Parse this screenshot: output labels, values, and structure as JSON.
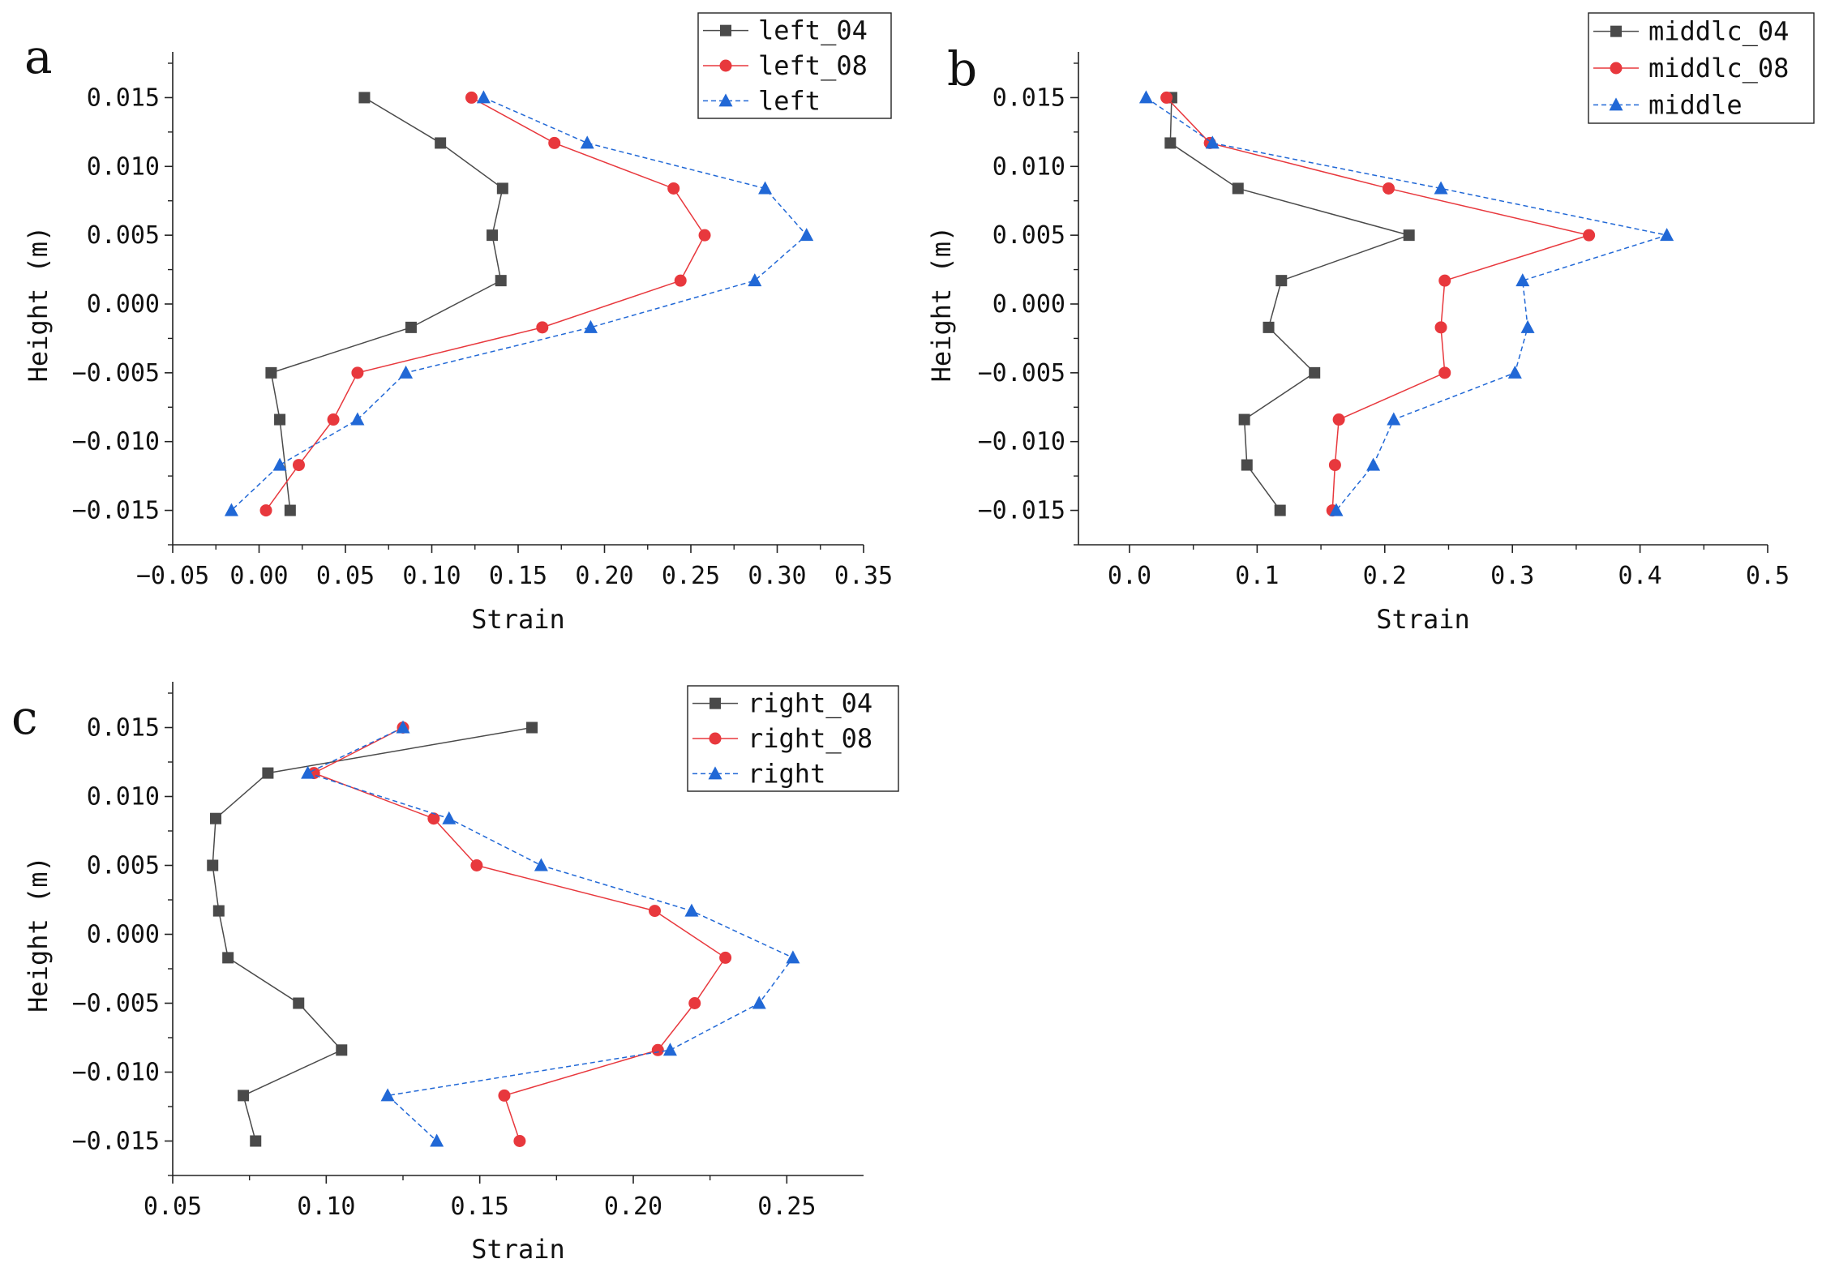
{
  "figure_title": "",
  "chart_data": [
    {
      "type": "line",
      "panel_label": "a",
      "title": "",
      "xlabel": "Strain",
      "ylabel": "Height (m)",
      "xlim": [
        -0.05,
        0.35
      ],
      "ylim": [
        -0.0175,
        0.0175
      ],
      "x_ticks": [
        -0.05,
        0.0,
        0.05,
        0.1,
        0.15,
        0.2,
        0.25,
        0.3,
        0.35
      ],
      "x_tick_labels": [
        "−0.05",
        "0.00",
        "0.05",
        "0.10",
        "0.15",
        "0.20",
        "0.25",
        "0.30",
        "0.35"
      ],
      "y_ticks": [
        0.015,
        0.01,
        0.005,
        0.0,
        -0.005,
        -0.01,
        -0.015
      ],
      "y_tick_labels": [
        "0.015",
        "0.010",
        "0.005",
        "0.000",
        "−0.005",
        "−0.010",
        "−0.015"
      ],
      "legend_position": "top-right",
      "series": [
        {
          "name": "left_04",
          "color": "#4a4a4a",
          "marker": "square",
          "line_style": "solid",
          "x": [
            0.061,
            0.105,
            0.141,
            0.135,
            0.14,
            0.088,
            0.007,
            0.012,
            0.018
          ],
          "y": [
            0.015,
            0.0117,
            0.0084,
            0.005,
            0.0017,
            -0.0017,
            -0.005,
            -0.0084,
            -0.015
          ]
        },
        {
          "name": "left_08",
          "color": "#e8383d",
          "marker": "circle",
          "line_style": "solid",
          "x": [
            0.123,
            0.171,
            0.24,
            0.258,
            0.244,
            0.164,
            0.057,
            0.043,
            0.023,
            0.004
          ],
          "y": [
            0.015,
            0.0117,
            0.0084,
            0.005,
            0.0017,
            -0.0017,
            -0.005,
            -0.0084,
            -0.0117,
            -0.015
          ]
        },
        {
          "name": "left",
          "color": "#2168d6",
          "marker": "triangle",
          "line_style": "dashed",
          "x": [
            0.13,
            0.19,
            0.293,
            0.317,
            0.287,
            0.192,
            0.085,
            0.057,
            0.012,
            -0.016
          ],
          "y": [
            0.015,
            0.0117,
            0.0084,
            0.005,
            0.0017,
            -0.0017,
            -0.005,
            -0.0084,
            -0.0117,
            -0.015
          ]
        }
      ]
    },
    {
      "type": "line",
      "panel_label": "b",
      "title": "",
      "xlabel": "Strain",
      "ylabel": "Height (m)",
      "xlim": [
        -0.04,
        0.5
      ],
      "ylim": [
        -0.0175,
        0.0175
      ],
      "x_ticks": [
        0.0,
        0.1,
        0.2,
        0.3,
        0.4,
        0.5
      ],
      "x_tick_labels": [
        "0.0",
        "0.1",
        "0.2",
        "0.3",
        "0.4",
        "0.5"
      ],
      "y_ticks": [
        0.015,
        0.01,
        0.005,
        0.0,
        -0.005,
        -0.01,
        -0.015
      ],
      "y_tick_labels": [
        "0.015",
        "0.010",
        "0.005",
        "0.000",
        "−0.005",
        "−0.010",
        "−0.015"
      ],
      "legend_position": "top-right",
      "series": [
        {
          "name": "middlc_04",
          "color": "#4a4a4a",
          "marker": "square",
          "line_style": "solid",
          "x": [
            0.033,
            0.032,
            0.085,
            0.219,
            0.119,
            0.109,
            0.145,
            0.09,
            0.092,
            0.118
          ],
          "y": [
            0.015,
            0.0117,
            0.0084,
            0.005,
            0.0017,
            -0.0017,
            -0.005,
            -0.0084,
            -0.0117,
            -0.015
          ]
        },
        {
          "name": "middlc_08",
          "color": "#e8383d",
          "marker": "circle",
          "line_style": "solid",
          "x": [
            0.029,
            0.063,
            0.203,
            0.36,
            0.247,
            0.244,
            0.247,
            0.164,
            0.161,
            0.159
          ],
          "y": [
            0.015,
            0.0117,
            0.0084,
            0.005,
            0.0017,
            -0.0017,
            -0.005,
            -0.0084,
            -0.0117,
            -0.015
          ]
        },
        {
          "name": "middle",
          "color": "#2168d6",
          "marker": "triangle",
          "line_style": "dashed",
          "x": [
            0.013,
            0.065,
            0.244,
            0.421,
            0.308,
            0.312,
            0.302,
            0.207,
            0.191,
            0.162
          ],
          "y": [
            0.015,
            0.0117,
            0.0084,
            0.005,
            0.0017,
            -0.0017,
            -0.005,
            -0.0084,
            -0.0117,
            -0.015
          ]
        }
      ]
    },
    {
      "type": "line",
      "panel_label": "c",
      "title": "",
      "xlabel": "Strain",
      "ylabel": "Height (m)",
      "xlim": [
        0.05,
        0.275
      ],
      "ylim": [
        -0.0175,
        0.0175
      ],
      "x_ticks": [
        0.05,
        0.1,
        0.15,
        0.2,
        0.25
      ],
      "x_tick_labels": [
        "0.05",
        "0.10",
        "0.15",
        "0.20",
        "0.25"
      ],
      "y_ticks": [
        0.015,
        0.01,
        0.005,
        0.0,
        -0.005,
        -0.01,
        -0.015
      ],
      "y_tick_labels": [
        "0.015",
        "0.010",
        "0.005",
        "0.000",
        "−0.005",
        "−0.010",
        "−0.015"
      ],
      "legend_position": "top-right",
      "series": [
        {
          "name": "right_04",
          "color": "#4a4a4a",
          "marker": "square",
          "line_style": "solid",
          "x": [
            0.167,
            0.081,
            0.064,
            0.063,
            0.065,
            0.068,
            0.091,
            0.105,
            0.073,
            0.077
          ],
          "y": [
            0.015,
            0.0117,
            0.0084,
            0.005,
            0.0017,
            -0.0017,
            -0.005,
            -0.0084,
            -0.0117,
            -0.015
          ]
        },
        {
          "name": "right_08",
          "color": "#e8383d",
          "marker": "circle",
          "line_style": "solid",
          "x": [
            0.125,
            0.096,
            0.135,
            0.149,
            0.207,
            0.23,
            0.22,
            0.208,
            0.158,
            0.163
          ],
          "y": [
            0.015,
            0.0117,
            0.0084,
            0.005,
            0.0017,
            -0.0017,
            -0.005,
            -0.0084,
            -0.0117,
            -0.015
          ]
        },
        {
          "name": "right",
          "color": "#2168d6",
          "marker": "triangle",
          "line_style": "dashed",
          "x": [
            0.125,
            0.094,
            0.14,
            0.17,
            0.219,
            0.252,
            0.241,
            0.212,
            0.12,
            0.136
          ],
          "y": [
            0.015,
            0.0117,
            0.0084,
            0.005,
            0.0017,
            -0.0017,
            -0.005,
            -0.0084,
            -0.0117,
            -0.015
          ]
        }
      ]
    }
  ]
}
